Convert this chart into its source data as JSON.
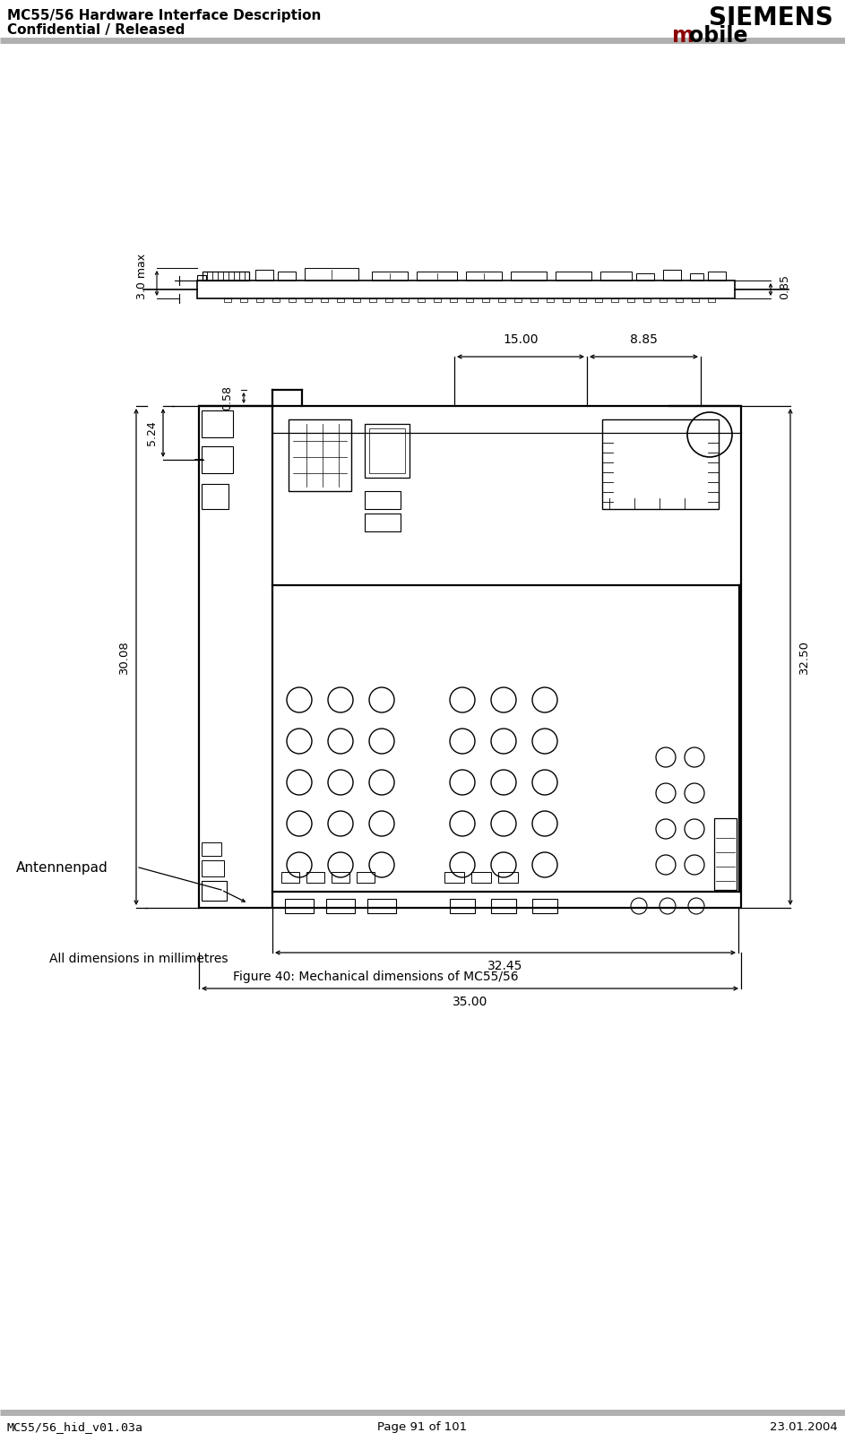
{
  "header_left_line1": "MC55/56 Hardware Interface Description",
  "header_left_line2": "Confidential / Released",
  "header_siemens": "SIEMENS",
  "header_mobile_m": "m",
  "header_mobile_rest": "obile",
  "footer_left": "MC55/56_hid_v01.03a",
  "footer_center": "Page 91 of 101",
  "footer_right": "23.01.2004",
  "caption_line1": "All dimensions in millimetres",
  "caption_line2": "Figure 40: Mechanical dimensions of MC55/56",
  "dim_3max": "3.0 max",
  "dim_085": "0.85",
  "dim_058": "0.58",
  "dim_1500": "15.00",
  "dim_885": "8.85",
  "dim_524": "5.24",
  "dim_3008": "30.08",
  "dim_3250": "32.50",
  "dim_3245": "32.45",
  "dim_3500": "35.00",
  "antpad": "Antennenpad",
  "bg_color": "#ffffff",
  "line_color": "#000000",
  "header_line_color": "#b0b0b0",
  "siemens_color": "#000000",
  "mobile_m_color": "#8b0000"
}
